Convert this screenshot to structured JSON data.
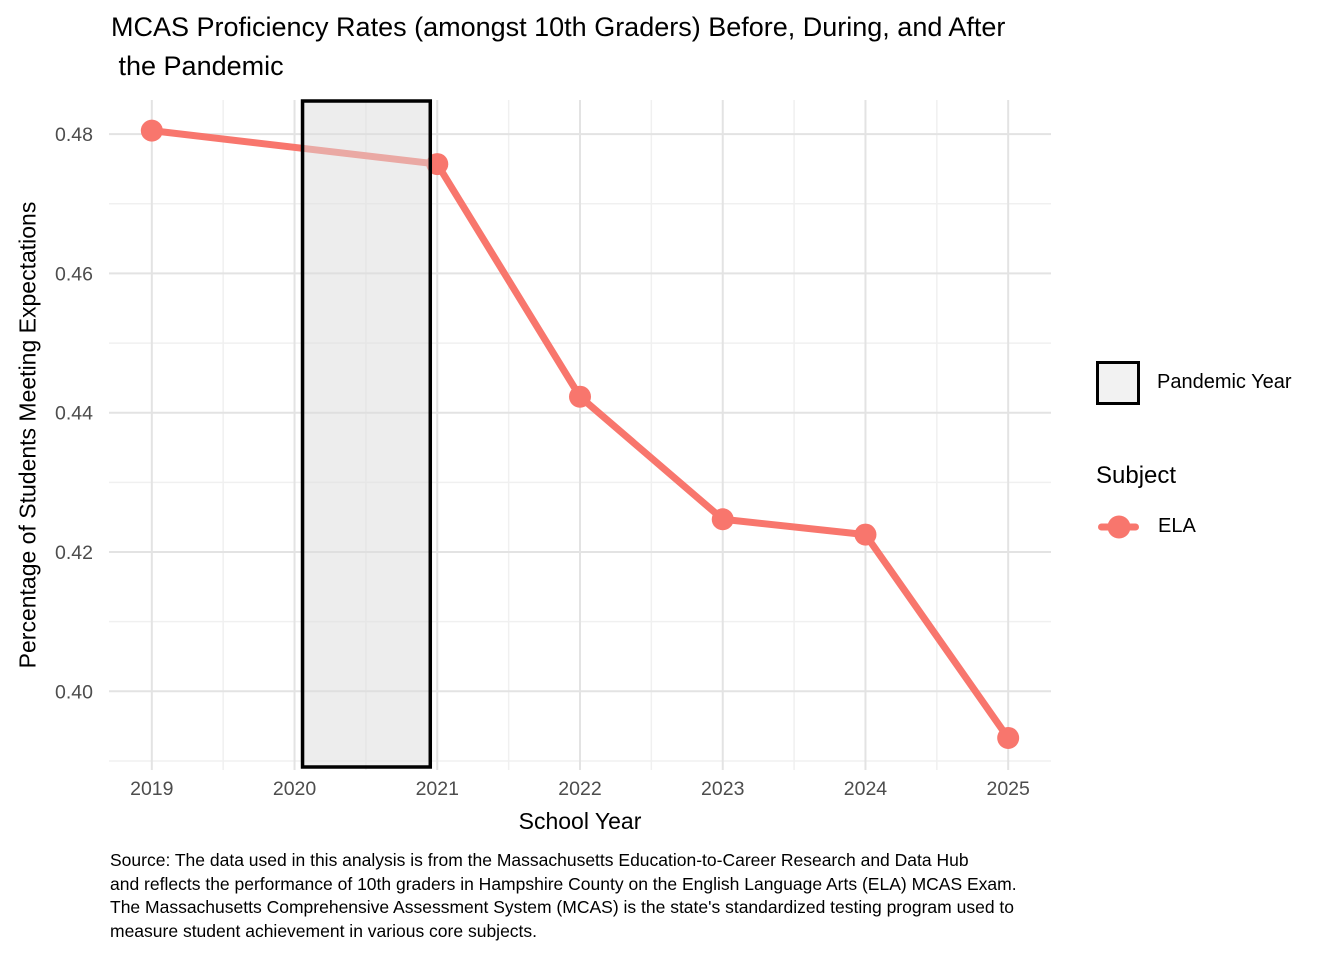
{
  "chart_data": {
    "type": "line",
    "title": "MCAS Proficiency Rates (amongst 10th Graders) Before, During, and After\n the Pandemic",
    "xlabel": "School Year",
    "ylabel": "Percentage of Students Meeting Expectations",
    "x": [
      2019,
      2021,
      2022,
      2023,
      2024,
      2025
    ],
    "series": [
      {
        "name": "ELA",
        "values": [
          0.4805,
          0.4757,
          0.4423,
          0.4247,
          0.4225,
          0.3933
        ]
      }
    ],
    "x_ticks": [
      2019,
      2020,
      2021,
      2022,
      2023,
      2024,
      2025
    ],
    "y_ticks": [
      0.4,
      0.42,
      0.44,
      0.46,
      0.48
    ],
    "y_tick_labels": [
      "0.40",
      "0.42",
      "0.44",
      "0.46",
      "0.48"
    ],
    "xlim": [
      2018.7,
      2025.3
    ],
    "ylim": [
      0.3887,
      0.4849
    ],
    "grid": "major and minor gridlines, light gray on white, no panel border, no tick marks",
    "legend_position": "right",
    "annotations": [
      {
        "type": "rect-band",
        "label": "Pandemic Year",
        "xmin": 2020,
        "xmax": 2021
      }
    ],
    "colors": {
      "line": "#F8766D",
      "band_fill": "#DBDBDB",
      "band_border": "#000000",
      "grid_major": "#E3E3E3",
      "grid_minor": "#F0F0F0",
      "tick_label": "#4D4D4D"
    }
  },
  "legend": {
    "pandemic_label": "Pandemic Year",
    "subject_title": "Subject",
    "subject_items": [
      {
        "label": "ELA",
        "color": "#F8766D"
      }
    ]
  },
  "caption": "Source: The data used in this analysis is from the Massachusetts Education-to-Career Research and Data Hub\nand reflects the performance of 10th graders in Hampshire County on the English Language Arts (ELA) MCAS Exam.\nThe Massachusetts Comprehensive Assessment System (MCAS) is the state's standardized testing program used to\nmeasure student achievement in various core subjects."
}
